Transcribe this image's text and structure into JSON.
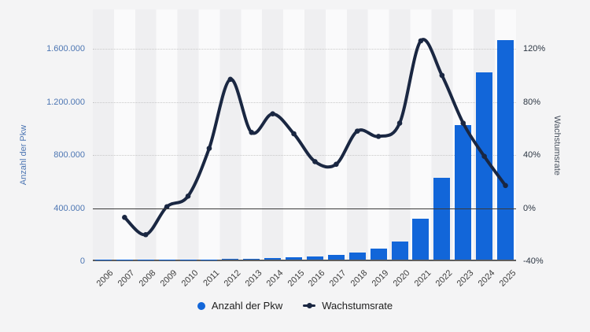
{
  "chart_data": {
    "type": "combo-bar-line",
    "categories": [
      "2006",
      "2007",
      "2008",
      "2009",
      "2010",
      "2011",
      "2012",
      "2013",
      "2014",
      "2015",
      "2016",
      "2017",
      "2018",
      "2019",
      "2020",
      "2021",
      "2022",
      "2023",
      "2024",
      "2025"
    ],
    "series": [
      {
        "name": "Anzahl der Pkw",
        "type": "bar",
        "axis": "left",
        "color": "#1266d9",
        "values": [
          1900,
          1800,
          1400,
          1500,
          1600,
          2300,
          4500,
          7100,
          12200,
          19000,
          25500,
          34000,
          54000,
          83000,
          137000,
          309000,
          618000,
          1013000,
          1409000,
          1652000
        ]
      },
      {
        "name": "Wachstumsrate",
        "type": "line",
        "axis": "right",
        "color": "#1a2742",
        "values": [
          null,
          -7,
          -20,
          1,
          9,
          45,
          97,
          57,
          71,
          56,
          35,
          33,
          58,
          54,
          64,
          126,
          100,
          64,
          39,
          17
        ]
      }
    ],
    "left_axis": {
      "title": "Anzahl der Pkw",
      "tick_labels": [
        "0",
        "400.000",
        "800.000",
        "1.200.000",
        "1.600.000"
      ],
      "tick_values": [
        0,
        400000,
        800000,
        1200000,
        1600000
      ],
      "min": 0,
      "max": 1600000
    },
    "right_axis": {
      "title": "Wachstumsrate",
      "tick_labels": [
        "-40%",
        "0%",
        "40%",
        "80%",
        "120%"
      ],
      "tick_values": [
        -40,
        0,
        40,
        80,
        120
      ],
      "min": -40,
      "max": 120,
      "zero_line_at": 0
    },
    "grid": "horizontal-dotted",
    "legend_position": "bottom",
    "background_stripes": true
  },
  "colors": {
    "page_background": "#f4f4f5",
    "stripe_dark": "#efeff1",
    "stripe_light": "#fafafb",
    "bar": "#1266d9",
    "line": "#1a2742",
    "gridline": "#c8c8c8",
    "zero_line": "#3a3a3a",
    "baseline": "#5e5e5e",
    "left_axis_text": "#4d76b3",
    "right_axis_text": "#2c3643",
    "x_axis_text": "#3e3e3e"
  }
}
